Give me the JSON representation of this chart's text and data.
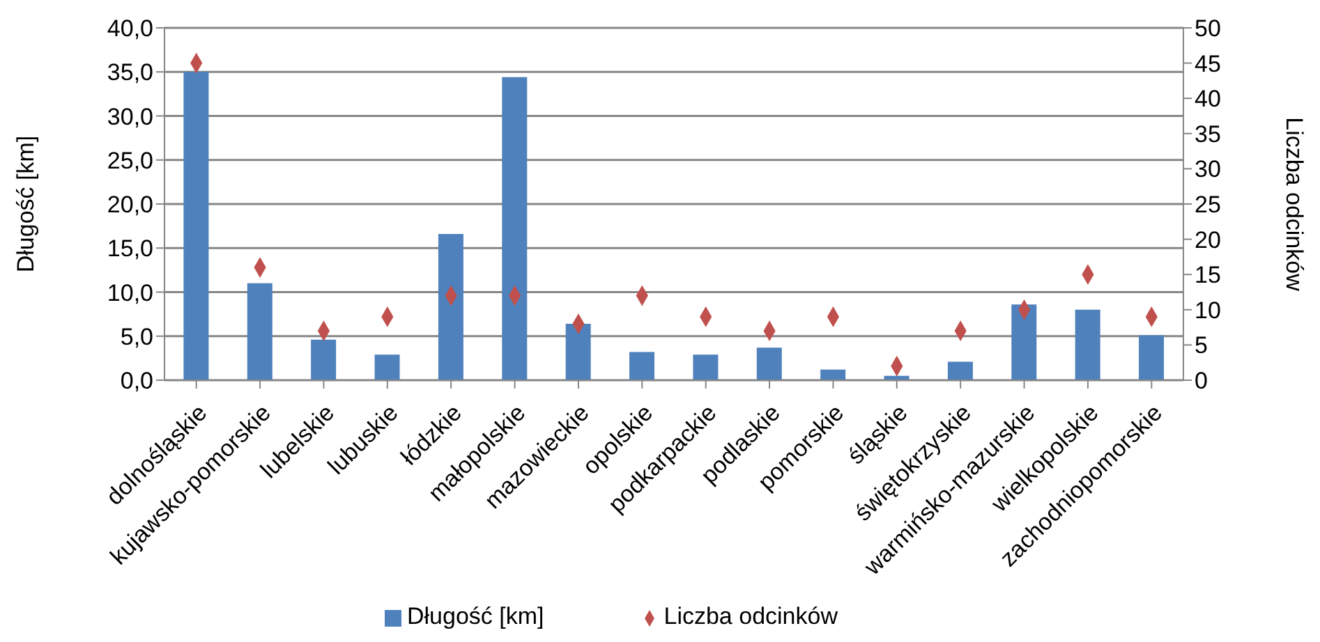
{
  "chart_data": {
    "type": "bar",
    "ylabel": "Długość [km]",
    "y2label": "Liczba odcinków",
    "categories": [
      "dolnośląskie",
      "kujawsko-pomorskie",
      "lubelskie",
      "lubuskie",
      "łódzkie",
      "małopolskie",
      "mazowieckie",
      "opolskie",
      "podkarpackie",
      "podlaskie",
      "pomorskie",
      "śląskie",
      "świętokrzyskie",
      "warmińsko-mazurskie",
      "wielkopolskie",
      "zachodniopomorskie"
    ],
    "series": [
      {
        "name": "Długość [km]",
        "color": "#4f81bd",
        "values": [
          35.0,
          11.0,
          4.6,
          2.9,
          16.6,
          34.4,
          6.4,
          3.2,
          2.9,
          3.7,
          1.2,
          0.5,
          2.1,
          8.6,
          8.0,
          5.1
        ]
      },
      {
        "name": "Liczba odcinków",
        "type": "scatter",
        "axis": "y2",
        "marker": "diamond",
        "color": "#c0504d",
        "values": [
          45,
          16,
          7,
          9,
          12,
          12,
          8,
          12,
          9,
          7,
          9,
          2,
          7,
          10,
          15,
          9
        ]
      }
    ],
    "ylim": [
      0,
      40
    ],
    "yticks": [
      {
        "value": 0,
        "label": "0,0"
      },
      {
        "value": 5,
        "label": "5,0"
      },
      {
        "value": 10,
        "label": "10,0"
      },
      {
        "value": 15,
        "label": "15,0"
      },
      {
        "value": 20,
        "label": "20,0"
      },
      {
        "value": 25,
        "label": "25,0"
      },
      {
        "value": 30,
        "label": "30,0"
      },
      {
        "value": 35,
        "label": "35,0"
      },
      {
        "value": 40,
        "label": "40,0"
      }
    ],
    "y2lim": [
      0,
      50
    ],
    "y2ticks": [
      0,
      5,
      10,
      15,
      20,
      25,
      30,
      35,
      40,
      45,
      50
    ],
    "grid": "y",
    "legend": "bottom"
  }
}
